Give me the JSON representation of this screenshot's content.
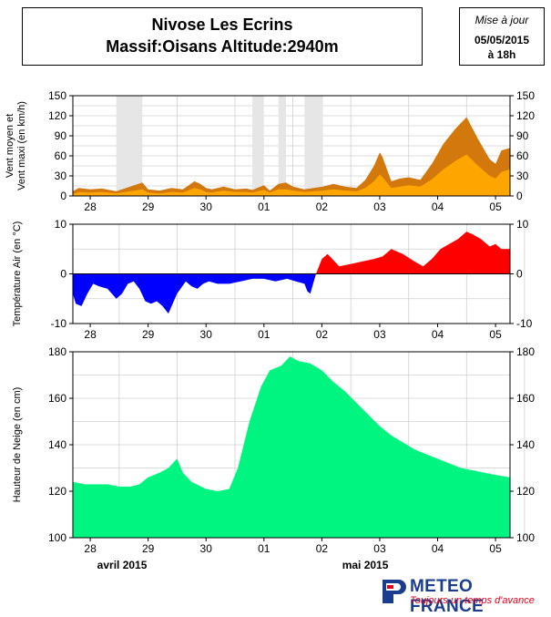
{
  "header": {
    "station": "Nivose Les Ecrins",
    "massif_line": "Massif:Oisans Altitude:2940m",
    "update_label": "Mise à jour",
    "update_date": "05/05/2015",
    "update_time": "à 18h"
  },
  "brand": {
    "name": "METEO FRANCE",
    "tagline": "Toujours un temps d'avance",
    "name_color": "#1b3d8f",
    "tagline_color": "#e3001b"
  },
  "colors": {
    "wind_max": "#d2780d",
    "wind_mean": "#ffa500",
    "temp_positive": "#ff0000",
    "temp_negative": "#0000ff",
    "snow": "#00f580",
    "missing_data": "#e6e6e6"
  },
  "chart_data": [
    {
      "type": "area",
      "panel": "wind",
      "ylabel": "Vent moyen et Vent maxi (en km/h)",
      "ylim": [
        0,
        150
      ],
      "yticks": [
        0,
        30,
        60,
        90,
        120,
        150
      ],
      "xlim": [
        27.7,
        5.25
      ],
      "xticks": [
        "28",
        "29",
        "30",
        "01",
        "02",
        "03",
        "04",
        "05"
      ],
      "grid": true,
      "missing_intervals": [
        [
          28.45,
          28.9
        ],
        [
          30.8,
          31.0
        ],
        [
          31.25,
          31.38
        ],
        [
          31.7,
          32.02
        ]
      ],
      "series": [
        {
          "name_hidden": "max",
          "x": [
            27.7,
            27.8,
            28.0,
            28.2,
            28.45,
            28.9,
            29.0,
            29.2,
            29.4,
            29.6,
            29.8,
            29.9,
            30.0,
            30.1,
            30.3,
            30.5,
            30.7,
            30.8,
            31.0,
            31.1,
            31.25,
            31.38,
            31.5,
            31.7,
            32.02,
            32.2,
            32.4,
            32.6,
            32.75,
            32.9,
            33.0,
            33.05,
            33.2,
            33.35,
            33.5,
            33.7,
            33.9,
            34.1,
            34.3,
            34.5,
            34.7,
            34.9,
            35.0,
            35.1,
            35.25
          ],
          "values": [
            7,
            12,
            10,
            11,
            7,
            20,
            10,
            8,
            12,
            10,
            22,
            18,
            12,
            10,
            14,
            10,
            11,
            9,
            16,
            8,
            18,
            20,
            14,
            10,
            14,
            18,
            14,
            12,
            24,
            45,
            65,
            58,
            22,
            26,
            28,
            24,
            48,
            78,
            100,
            118,
            85,
            55,
            48,
            68,
            72
          ]
        },
        {
          "name_hidden": "mean",
          "x": [
            27.7,
            27.8,
            28.0,
            28.2,
            28.45,
            28.9,
            29.0,
            29.2,
            29.4,
            29.6,
            29.8,
            29.9,
            30.0,
            30.1,
            30.3,
            30.5,
            30.7,
            30.8,
            31.0,
            31.1,
            31.25,
            31.38,
            31.5,
            31.7,
            32.02,
            32.2,
            32.4,
            32.6,
            32.75,
            32.9,
            33.0,
            33.05,
            33.2,
            33.35,
            33.5,
            33.7,
            33.9,
            34.1,
            34.3,
            34.5,
            34.7,
            34.9,
            35.0,
            35.1,
            35.25
          ],
          "values": [
            3,
            6,
            5,
            6,
            4,
            10,
            5,
            4,
            6,
            5,
            12,
            10,
            6,
            5,
            8,
            6,
            6,
            5,
            9,
            5,
            10,
            10,
            8,
            6,
            8,
            10,
            8,
            7,
            12,
            22,
            32,
            28,
            12,
            14,
            16,
            14,
            25,
            40,
            52,
            62,
            45,
            30,
            26,
            36,
            40
          ]
        }
      ]
    },
    {
      "type": "area",
      "panel": "temperature",
      "ylabel": "Température Air (en °C)",
      "ylim": [
        -10,
        10
      ],
      "yticks": [
        -10,
        0,
        10
      ],
      "xlim": [
        27.7,
        5.25
      ],
      "xticks": [
        "28",
        "29",
        "30",
        "01",
        "02",
        "03",
        "04",
        "05"
      ],
      "grid": true,
      "x": [
        27.7,
        27.75,
        27.85,
        27.95,
        28.05,
        28.15,
        28.3,
        28.45,
        28.55,
        28.65,
        28.75,
        28.85,
        28.95,
        29.05,
        29.15,
        29.25,
        29.35,
        29.5,
        29.65,
        29.75,
        29.85,
        29.95,
        30.05,
        30.2,
        30.4,
        30.6,
        30.8,
        31.0,
        31.2,
        31.4,
        31.55,
        31.7,
        31.75,
        31.8,
        31.85,
        31.9,
        32.0,
        32.1,
        32.3,
        32.5,
        32.7,
        32.9,
        33.05,
        33.2,
        33.4,
        33.6,
        33.75,
        33.9,
        34.05,
        34.2,
        34.35,
        34.5,
        34.6,
        34.75,
        34.9,
        35.0,
        35.1,
        35.25
      ],
      "values": [
        -4,
        -6,
        -6.5,
        -4,
        -2,
        -2.5,
        -3,
        -5,
        -4,
        -2,
        -1.5,
        -3,
        -5.5,
        -6,
        -5.5,
        -6.5,
        -8,
        -4,
        -1.5,
        -2.5,
        -3,
        -2,
        -1.5,
        -2,
        -2,
        -1.5,
        -1,
        -1,
        -1.5,
        -1,
        -1.5,
        -2,
        -3.5,
        -4,
        -2,
        0,
        3,
        4,
        1.5,
        2,
        2.5,
        3,
        3.5,
        5,
        4,
        2.5,
        1.5,
        3,
        5,
        6,
        7,
        8.5,
        8,
        7,
        5.5,
        6,
        5,
        5
      ]
    },
    {
      "type": "area",
      "panel": "snow",
      "ylabel": "Hauteur de Neige (en cm)",
      "ylim": [
        100,
        180
      ],
      "yticks": [
        100,
        120,
        140,
        160,
        180
      ],
      "xlim": [
        27.7,
        5.25
      ],
      "xticks": [
        "28",
        "29",
        "30",
        "01",
        "02",
        "03",
        "04",
        "05"
      ],
      "month_labels": [
        "avril 2015",
        "mai 2015"
      ],
      "grid": true,
      "x": [
        27.7,
        27.9,
        28.1,
        28.3,
        28.5,
        28.7,
        28.85,
        29.0,
        29.2,
        29.35,
        29.5,
        29.6,
        29.75,
        30.0,
        30.2,
        30.4,
        30.55,
        30.75,
        30.95,
        31.1,
        31.3,
        31.45,
        31.6,
        31.8,
        32.0,
        32.2,
        32.4,
        32.6,
        32.8,
        33.0,
        33.2,
        33.4,
        33.6,
        33.8,
        34.0,
        34.2,
        34.4,
        34.6,
        34.8,
        35.0,
        35.25
      ],
      "values": [
        124,
        123,
        123,
        123,
        122,
        122,
        123,
        126,
        128,
        130,
        134,
        128,
        124,
        121,
        120,
        121,
        130,
        150,
        165,
        172,
        174,
        178,
        176,
        175,
        172,
        167,
        163,
        158,
        153,
        148,
        144,
        141,
        138,
        136,
        134,
        132,
        130,
        129,
        128,
        127,
        126
      ]
    }
  ]
}
